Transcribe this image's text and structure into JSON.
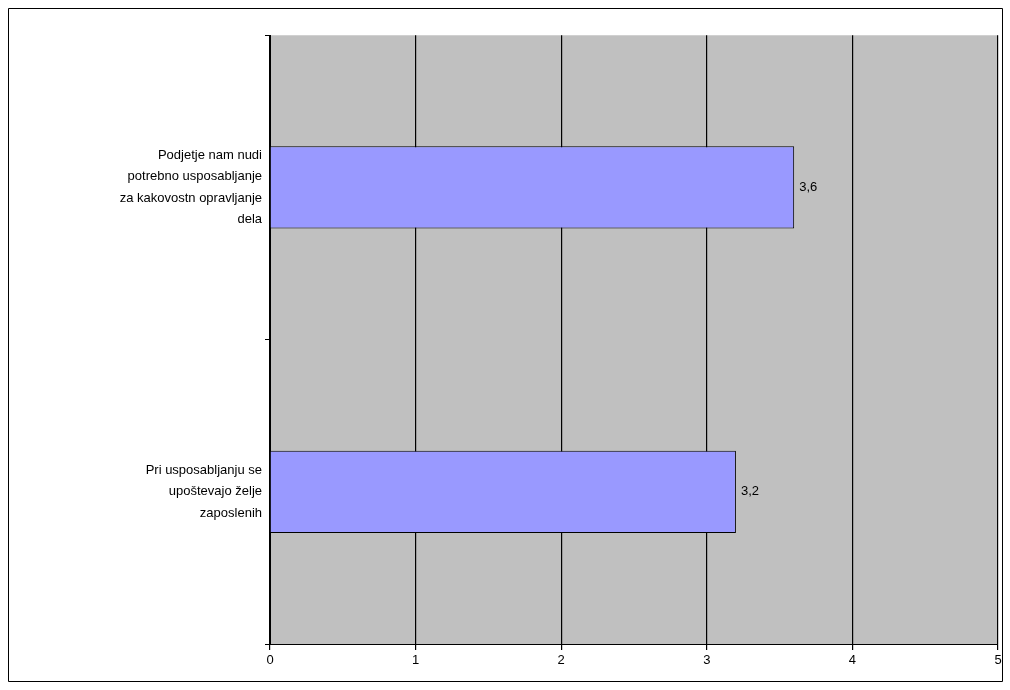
{
  "chart_data": {
    "type": "bar",
    "orientation": "horizontal",
    "categories": [
      "Podjetje nam nudi potrebno usposabljanje za kakovostn opravljanje dela",
      "Pri usposabljanju se upoštevajo želje zaposlenih"
    ],
    "values": [
      3.6,
      3.2
    ],
    "color": "#9999ff",
    "value_labels": [
      "3,6",
      "3,2"
    ],
    "xlim": [
      0,
      5
    ],
    "xticks": [
      0,
      1,
      2,
      3,
      4,
      5
    ],
    "grid": "x",
    "legend": false
  }
}
